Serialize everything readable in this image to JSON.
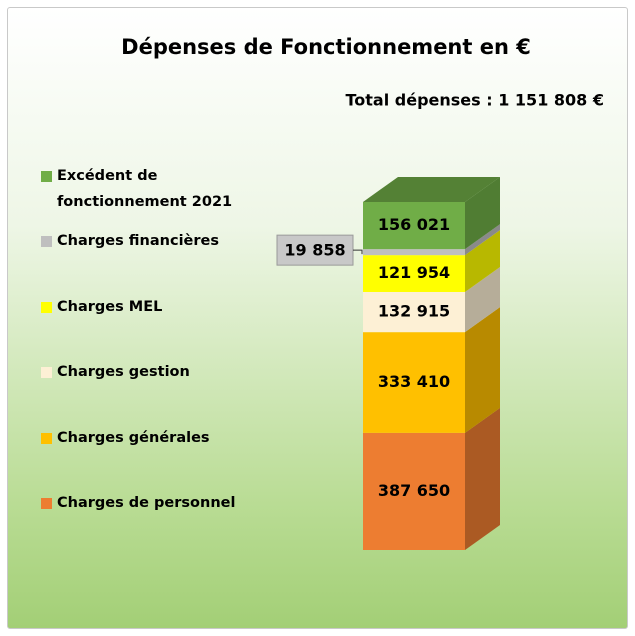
{
  "chart_data": {
    "type": "stacked_bar_3d",
    "title": "Dépenses de Fonctionnement en €",
    "subtitle": "Total dépenses : 1 151 808 €",
    "series": [
      {
        "name": "Charges de personnel",
        "color": "#ed7d31",
        "values": [
          387650
        ],
        "value_labels": [
          "387 650"
        ]
      },
      {
        "name": "Charges générales",
        "color": "#ffc000",
        "values": [
          333410
        ],
        "value_labels": [
          "333 410"
        ]
      },
      {
        "name": "Charges gestion",
        "color": "#fdf0d5",
        "values": [
          132915
        ],
        "value_labels": [
          "132 915"
        ]
      },
      {
        "name": "Charges MEL",
        "color": "#ffff00",
        "values": [
          121954
        ],
        "value_labels": [
          "121 954"
        ]
      },
      {
        "name": "Charges financières",
        "color": "#bfbfbf",
        "values": [
          19858
        ],
        "value_labels": [
          "19 858"
        ]
      },
      {
        "name": "Excédent de fonctionnement 2021",
        "color": "#70ad47",
        "values": [
          156021
        ],
        "value_labels": [
          "156 021"
        ]
      }
    ]
  }
}
